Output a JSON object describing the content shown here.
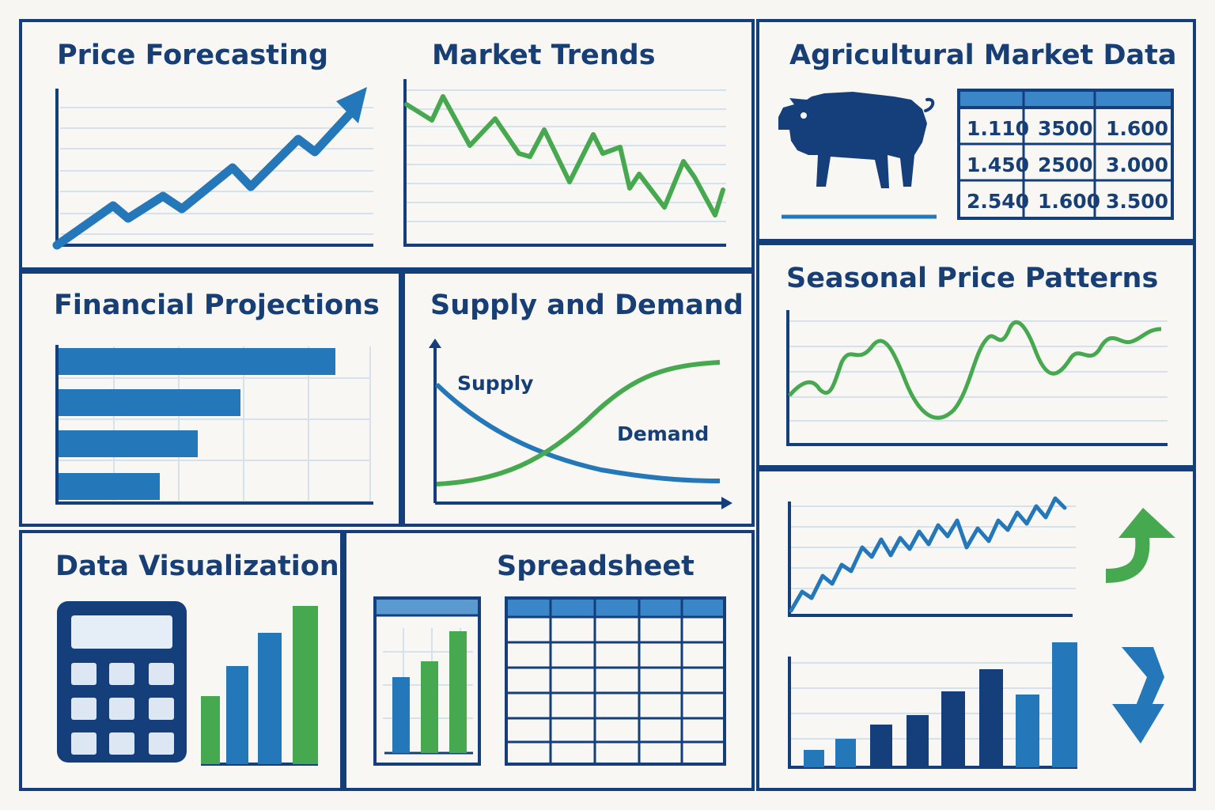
{
  "panels": {
    "price_forecasting": {
      "title": "Price Forecasting"
    },
    "market_trends": {
      "title": "Market Trends"
    },
    "agricultural_market_data": {
      "title": "Agricultural Market Data"
    },
    "financial_projections": {
      "title": "Financial Projections"
    },
    "supply_and_demand": {
      "title": "Supply and Demand",
      "supply_label": "Supply",
      "demand_label": "Demand"
    },
    "seasonal_price_patterns": {
      "title": "Seasonal Price Patterns"
    },
    "data_visualization": {
      "title": "Data Visualization"
    },
    "spreadsheet": {
      "title": "Spreadsheet"
    }
  },
  "market_table": {
    "rows": [
      [
        "1.110",
        "3500",
        "1.600"
      ],
      [
        "1.450",
        "2500",
        "3.000"
      ],
      [
        "2.540",
        "1.600",
        "3.500"
      ]
    ]
  },
  "colors": {
    "navy": "#153f7a",
    "blue": "#2478b9",
    "green": "#46a84f",
    "light_blue": "#5a9ad1"
  },
  "icons": {
    "pig": "pig-icon",
    "calculator": "calculator-icon",
    "up_arrow": "up-arrow-icon",
    "down_arrow": "down-arrow-icon"
  }
}
